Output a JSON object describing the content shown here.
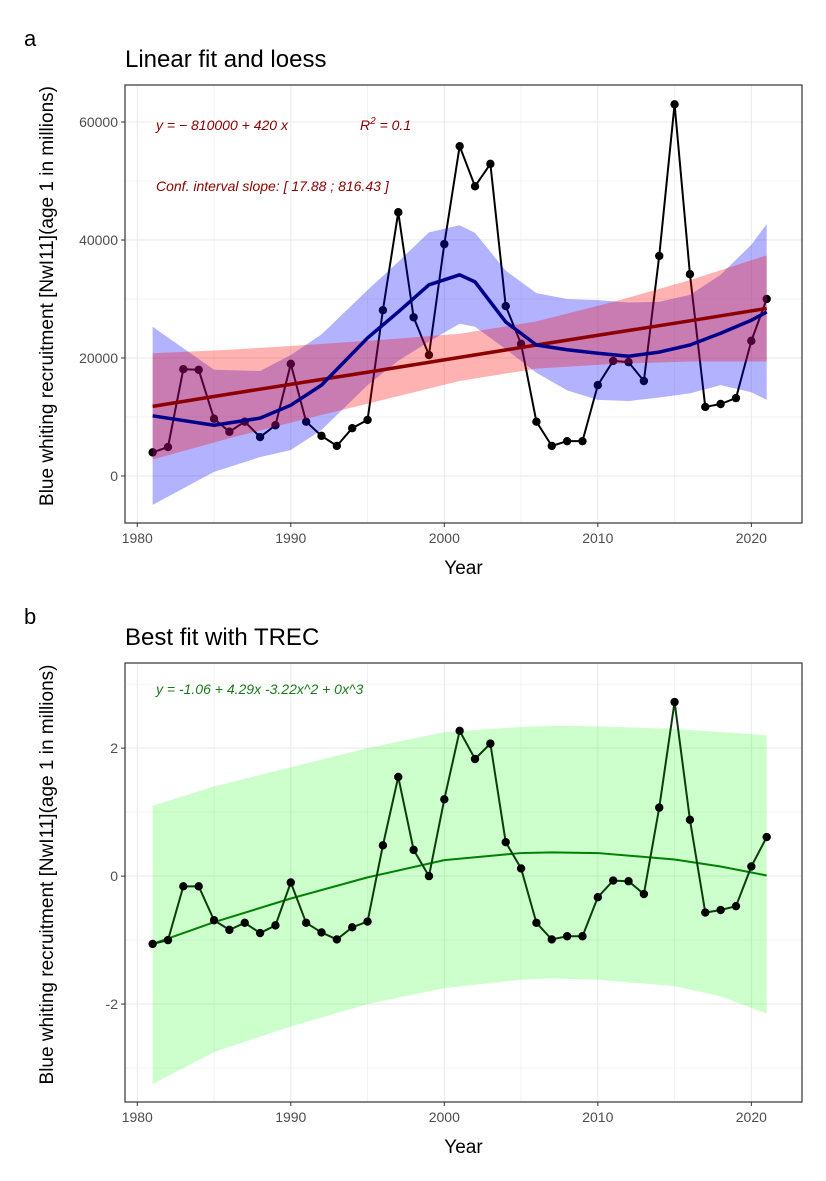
{
  "chart_data": [
    {
      "panel_label": "a",
      "type": "line",
      "title": "Linear fit and loess",
      "xlabel": "Year",
      "ylabel": "Blue whiting recruitment [NwI11](age 1 in millions)",
      "xlim": [
        1979.2,
        2023.3
      ],
      "ylim": [
        -7970,
        66270
      ],
      "xticks": [
        1980,
        1990,
        2000,
        2010,
        2020
      ],
      "yticks": [
        0,
        20000,
        40000,
        60000
      ],
      "grid": true,
      "annotations": {
        "equation_prefix": "y = − 810000 + 420 x",
        "r2_label": "R",
        "r2_sup": "2",
        "r2_value": " = 0.1",
        "conf_interval": "Conf. interval slope:  [ 17.88 ; 816.43 ]"
      },
      "colors": {
        "points": "#000000",
        "linear": "#8b0000",
        "linear_ribbon": "#ff0000",
        "loess": "#00008b",
        "loess_ribbon": "#0000ff",
        "annotation": "#8b0000"
      },
      "x": [
        1981,
        1982,
        1983,
        1984,
        1985,
        1986,
        1987,
        1988,
        1989,
        1990,
        1991,
        1992,
        1993,
        1994,
        1995,
        1996,
        1997,
        1998,
        1999,
        2000,
        2001,
        2002,
        2003,
        2004,
        2005,
        2006,
        2007,
        2008,
        2009,
        2010,
        2011,
        2012,
        2013,
        2014,
        2015,
        2016,
        2017,
        2018,
        2019,
        2020,
        2021
      ],
      "y": [
        4000,
        4900,
        18100,
        18000,
        9700,
        7500,
        9200,
        6600,
        8600,
        19000,
        9200,
        6800,
        5100,
        8100,
        9500,
        28100,
        44700,
        26900,
        20500,
        39300,
        55900,
        49100,
        52900,
        28800,
        22400,
        9200,
        5100,
        5900,
        5900,
        15400,
        19500,
        19300,
        16100,
        37300,
        63000,
        34200,
        11700,
        12200,
        13200,
        22900,
        30000
      ],
      "linear_fit": {
        "x": [
          1981,
          1986,
          1991,
          1996,
          2001,
          2006,
          2011,
          2016,
          2021
        ],
        "y": [
          11800,
          13900,
          15950,
          18000,
          20100,
          22200,
          24250,
          26300,
          28400
        ],
        "lower": [
          2800,
          6400,
          9700,
          12900,
          16100,
          18200,
          19000,
          19400,
          19400
        ],
        "upper": [
          20800,
          21400,
          22200,
          23100,
          24100,
          26200,
          29500,
          33200,
          37400
        ]
      },
      "loess_fit": {
        "x": [
          1981,
          1985,
          1988,
          1990,
          1992,
          1995,
          1997,
          1999,
          2001,
          2002,
          2004,
          2006,
          2008,
          2010,
          2012,
          2014,
          2016,
          2018,
          2020,
          2021
        ],
        "y": [
          10200,
          8600,
          9800,
          12000,
          15400,
          23400,
          27800,
          32400,
          34100,
          32900,
          26100,
          22200,
          21400,
          20800,
          20300,
          21000,
          22200,
          24200,
          26400,
          27800
        ],
        "lower": [
          -4900,
          700,
          3200,
          4400,
          7800,
          15400,
          19500,
          22800,
          25800,
          25300,
          21500,
          17500,
          14500,
          12900,
          12700,
          13300,
          14000,
          15400,
          14200,
          12900
        ],
        "upper": [
          25300,
          18000,
          17800,
          20500,
          24000,
          31500,
          36300,
          41300,
          42500,
          41200,
          34800,
          31000,
          30000,
          29800,
          29400,
          29500,
          30700,
          34100,
          39200,
          42700
        ]
      }
    },
    {
      "panel_label": "b",
      "type": "line",
      "title": "Best fit with TREC",
      "xlabel": "Year",
      "ylabel": "Blue whiting recruitment [NwI11](age 1 in millions)",
      "xlim": [
        1979.2,
        2023.3
      ],
      "ylim": [
        -3.53,
        3.33
      ],
      "xticks": [
        1980,
        1990,
        2000,
        2010,
        2020
      ],
      "yticks": [
        -2,
        0,
        2
      ],
      "grid": true,
      "annotations": {
        "equation": "y =  -1.06  + 4.29x   -3.22x^2  + 0x^3"
      },
      "colors": {
        "points": "#000000",
        "line": "#0b3d0b",
        "fit": "#008000",
        "ribbon": "#00ff00",
        "annotation": "#1a7a1a"
      },
      "x": [
        1981,
        1982,
        1983,
        1984,
        1985,
        1986,
        1987,
        1988,
        1989,
        1990,
        1991,
        1992,
        1993,
        1994,
        1995,
        1996,
        1997,
        1998,
        1999,
        2000,
        2001,
        2002,
        2003,
        2004,
        2005,
        2006,
        2007,
        2008,
        2009,
        2010,
        2011,
        2012,
        2013,
        2014,
        2015,
        2016,
        2017,
        2018,
        2019,
        2020,
        2021
      ],
      "y": [
        -1.06,
        -1.0,
        -0.16,
        -0.16,
        -0.69,
        -0.84,
        -0.73,
        -0.89,
        -0.77,
        -0.1,
        -0.73,
        -0.88,
        -0.99,
        -0.8,
        -0.71,
        0.48,
        1.55,
        0.41,
        0.0,
        1.2,
        2.27,
        1.83,
        2.07,
        0.53,
        0.12,
        -0.73,
        -0.99,
        -0.94,
        -0.94,
        -0.33,
        -0.07,
        -0.08,
        -0.28,
        1.07,
        2.72,
        0.88,
        -0.57,
        -0.53,
        -0.47,
        0.15,
        0.61
      ],
      "poly_fit": {
        "x": [
          1981,
          1985,
          1990,
          1995,
          2000,
          2005,
          2007,
          2010,
          2015,
          2018,
          2021
        ],
        "y": [
          -1.06,
          -0.72,
          -0.35,
          -0.02,
          0.25,
          0.36,
          0.37,
          0.36,
          0.26,
          0.15,
          0.01
        ],
        "lower": [
          -3.25,
          -2.75,
          -2.35,
          -2.0,
          -1.75,
          -1.62,
          -1.6,
          -1.62,
          -1.72,
          -1.88,
          -2.15
        ],
        "upper": [
          1.1,
          1.4,
          1.7,
          2.0,
          2.25,
          2.33,
          2.35,
          2.34,
          2.3,
          2.25,
          2.2
        ]
      }
    }
  ]
}
